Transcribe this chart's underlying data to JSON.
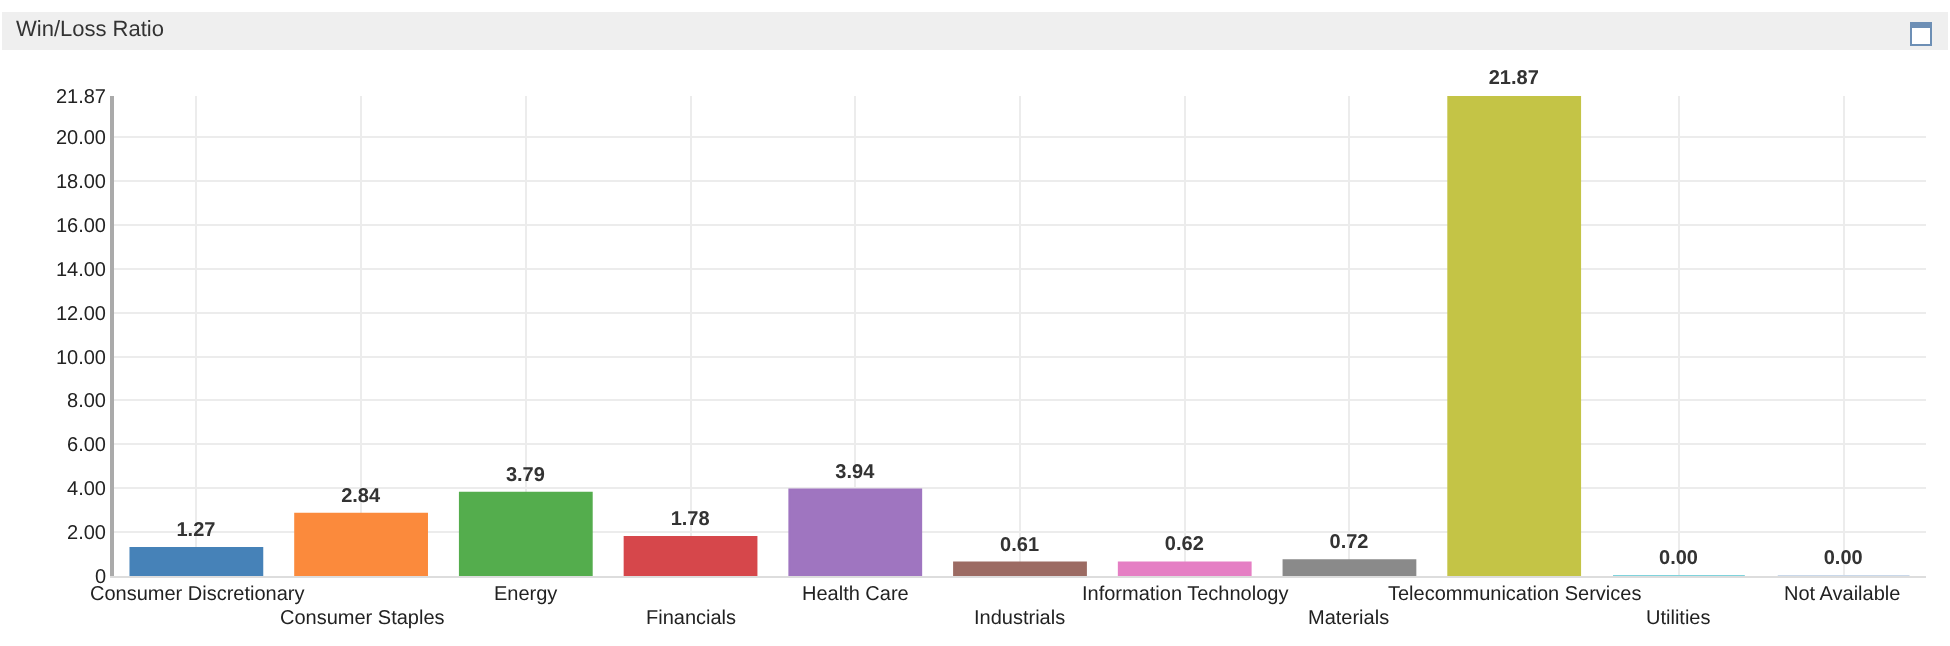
{
  "chart_data": {
    "type": "bar",
    "title": "Win/Loss Ratio",
    "categories": [
      "Consumer Discretionary",
      "Consumer Staples",
      "Energy",
      "Financials",
      "Health Care",
      "Industrials",
      "Information Technology",
      "Materials",
      "Telecommunication Services",
      "Utilities",
      "Not Available"
    ],
    "values": [
      1.27,
      2.84,
      3.79,
      1.78,
      3.94,
      0.61,
      0.62,
      0.72,
      21.87,
      0.0,
      0.0
    ],
    "colors": [
      "#4682b8",
      "#fb8a3c",
      "#54ad4d",
      "#d6474b",
      "#9f75c0",
      "#9c6b63",
      "#e57fc4",
      "#8a8a8a",
      "#c4c446",
      "#7fd3dc",
      "#c9d8ea"
    ],
    "value_labels": [
      "1.27",
      "2.84",
      "3.79",
      "1.78",
      "3.94",
      "0.61",
      "0.62",
      "0.72",
      "21.87",
      "0.00",
      "0.00"
    ],
    "ylim": [
      0,
      21.87
    ],
    "yticks": [
      0,
      {
        "value": 2,
        "label": "2.00"
      },
      {
        "value": 4,
        "label": "4.00"
      },
      {
        "value": 6,
        "label": "6.00"
      },
      {
        "value": 8,
        "label": "8.00"
      },
      {
        "value": 10,
        "label": "10.00"
      },
      {
        "value": 12,
        "label": "12.00"
      },
      {
        "value": 14,
        "label": "14.00"
      },
      {
        "value": 16,
        "label": "16.00"
      },
      {
        "value": 18,
        "label": "18.00"
      },
      {
        "value": 20,
        "label": "20.00"
      },
      {
        "value": 21.87,
        "label": "21.87"
      }
    ],
    "grid": true,
    "legend": false
  }
}
